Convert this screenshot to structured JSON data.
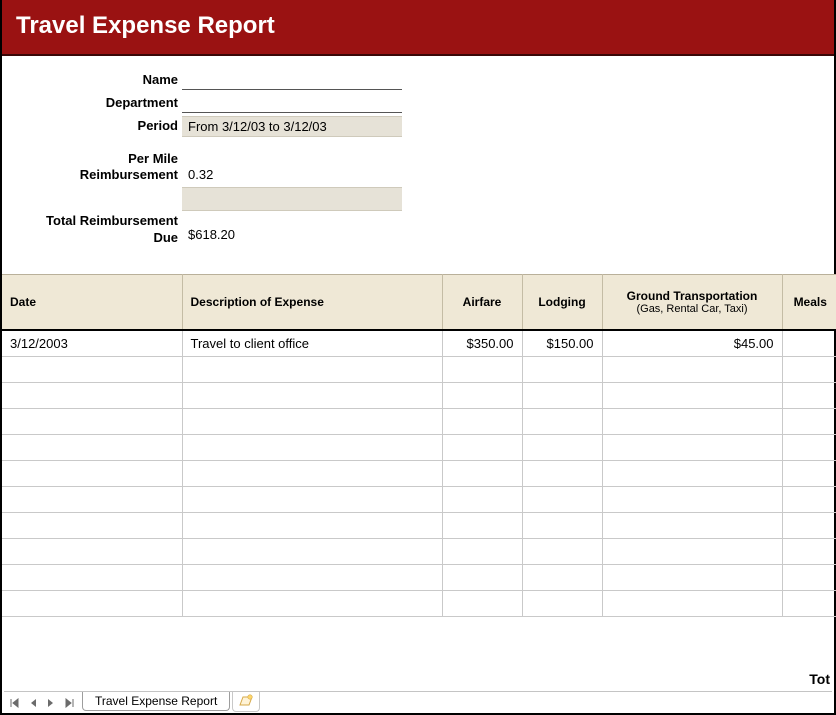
{
  "header": {
    "title": "Travel Expense Report",
    "bg_color": "#9a1212",
    "text_color": "#ffffff",
    "title_fontsize": 24
  },
  "form": {
    "name_label": "Name",
    "name_value": "",
    "department_label": "Department",
    "department_value": "",
    "period_label": "Period",
    "period_value": "From 3/12/03 to 3/12/03",
    "per_mile_label": "Per Mile Reimbursement",
    "per_mile_value": "0.32",
    "total_due_label": "Total Reimbursement Due",
    "total_due_value": "$618.20",
    "shaded_bg": "#e6e2d7"
  },
  "table": {
    "header_bg": "#efe8d6",
    "border_color": "#c4bca5",
    "columns": {
      "date": "Date",
      "desc": "Description of Expense",
      "airfare": "Airfare",
      "lodging": "Lodging",
      "ground": "Ground Transportation",
      "ground_sub": "(Gas, Rental Car, Taxi)",
      "meals": "Meals"
    },
    "rows": [
      {
        "date": "3/12/2003",
        "desc": "Travel to client office",
        "airfare": "$350.00",
        "lodging": "$150.00",
        "ground": "$45.00",
        "meals": ""
      },
      {
        "date": "",
        "desc": "",
        "airfare": "",
        "lodging": "",
        "ground": "",
        "meals": ""
      },
      {
        "date": "",
        "desc": "",
        "airfare": "",
        "lodging": "",
        "ground": "",
        "meals": ""
      },
      {
        "date": "",
        "desc": "",
        "airfare": "",
        "lodging": "",
        "ground": "",
        "meals": ""
      },
      {
        "date": "",
        "desc": "",
        "airfare": "",
        "lodging": "",
        "ground": "",
        "meals": ""
      },
      {
        "date": "",
        "desc": "",
        "airfare": "",
        "lodging": "",
        "ground": "",
        "meals": ""
      },
      {
        "date": "",
        "desc": "",
        "airfare": "",
        "lodging": "",
        "ground": "",
        "meals": ""
      },
      {
        "date": "",
        "desc": "",
        "airfare": "",
        "lodging": "",
        "ground": "",
        "meals": ""
      },
      {
        "date": "",
        "desc": "",
        "airfare": "",
        "lodging": "",
        "ground": "",
        "meals": ""
      },
      {
        "date": "",
        "desc": "",
        "airfare": "",
        "lodging": "",
        "ground": "",
        "meals": ""
      },
      {
        "date": "",
        "desc": "",
        "airfare": "",
        "lodging": "",
        "ground": "",
        "meals": ""
      }
    ]
  },
  "footer": {
    "total_label": "Tot",
    "tab_name": "Travel Expense Report",
    "arrow_color": "#6b6b6b"
  }
}
